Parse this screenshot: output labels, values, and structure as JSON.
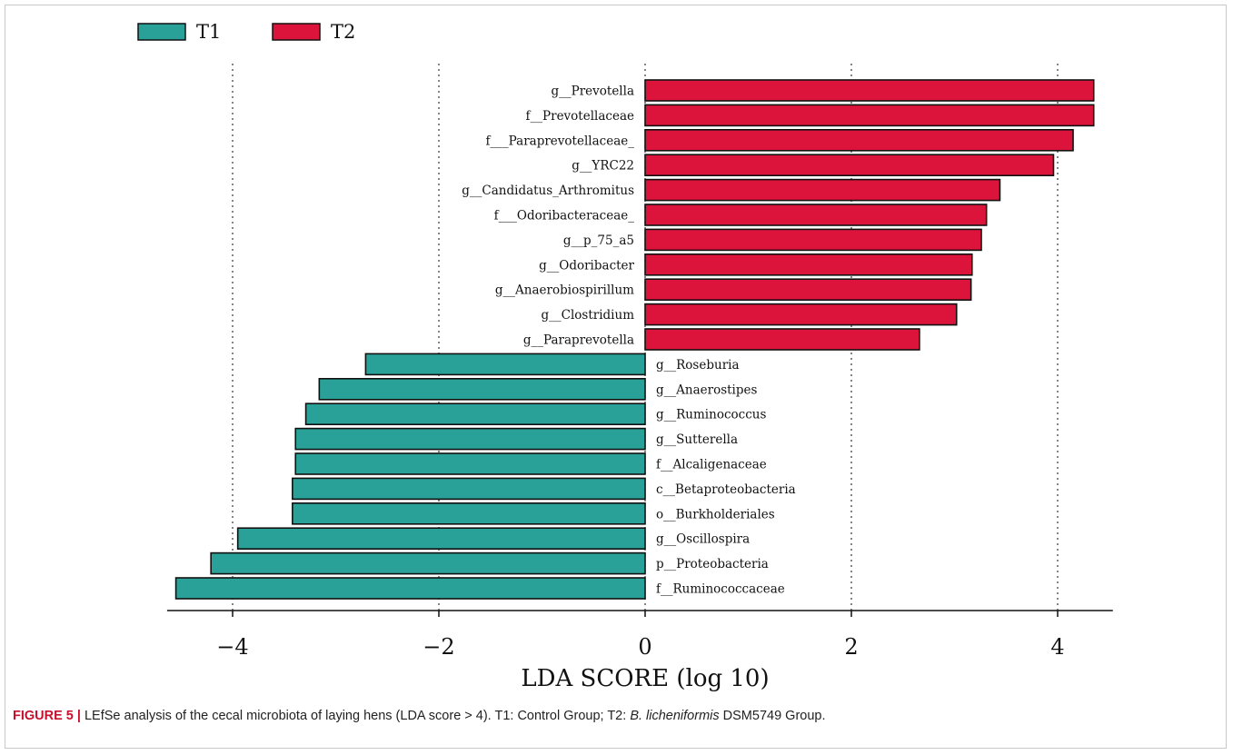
{
  "chart_data": {
    "type": "bar",
    "orientation": "horizontal",
    "xlabel": "LDA SCORE (log 10)",
    "xlim": [
      -4.6,
      4.5
    ],
    "xticks": [
      -4,
      -2,
      0,
      2,
      4
    ],
    "xtick_labels": [
      "−4",
      "−2",
      "0",
      "2",
      "4"
    ],
    "grid": "vertical dotted",
    "legend_position": "top-left",
    "series": [
      {
        "name": "T1",
        "color": "#2aa198"
      },
      {
        "name": "T2",
        "color": "#dc143c"
      }
    ],
    "bars": [
      {
        "label": "g__Prevotella",
        "value": 4.35,
        "group": "T2"
      },
      {
        "label": "f__Prevotellaceae",
        "value": 4.35,
        "group": "T2"
      },
      {
        "label": "f___Paraprevotellaceae_",
        "value": 4.15,
        "group": "T2"
      },
      {
        "label": "g__YRC22",
        "value": 3.96,
        "group": "T2"
      },
      {
        "label": "g__Candidatus_Arthromitus",
        "value": 3.44,
        "group": "T2"
      },
      {
        "label": "f___Odoribacteraceae_",
        "value": 3.31,
        "group": "T2"
      },
      {
        "label": "g__p_75_a5",
        "value": 3.26,
        "group": "T2"
      },
      {
        "label": "g__Odoribacter",
        "value": 3.17,
        "group": "T2"
      },
      {
        "label": "g__Anaerobiospirillum",
        "value": 3.16,
        "group": "T2"
      },
      {
        "label": "g__Clostridium",
        "value": 3.02,
        "group": "T2"
      },
      {
        "label": "g__Paraprevotella",
        "value": 2.66,
        "group": "T2"
      },
      {
        "label": "g__Roseburia",
        "value": -2.71,
        "group": "T1"
      },
      {
        "label": "g__Anaerostipes",
        "value": -3.16,
        "group": "T1"
      },
      {
        "label": "g__Ruminococcus",
        "value": -3.29,
        "group": "T1"
      },
      {
        "label": "g__Sutterella",
        "value": -3.39,
        "group": "T1"
      },
      {
        "label": "f__Alcaligenaceae",
        "value": -3.39,
        "group": "T1"
      },
      {
        "label": "c__Betaproteobacteria",
        "value": -3.42,
        "group": "T1"
      },
      {
        "label": "o__Burkholderiales",
        "value": -3.42,
        "group": "T1"
      },
      {
        "label": "g__Oscillospira",
        "value": -3.95,
        "group": "T1"
      },
      {
        "label": "p__Proteobacteria",
        "value": -4.21,
        "group": "T1"
      },
      {
        "label": "f__Ruminococcaceae",
        "value": -4.55,
        "group": "T1"
      }
    ]
  },
  "caption": {
    "figure_label": "FIGURE 5 |",
    "text_before_species": " LEfSe analysis of the cecal microbiota of laying hens (LDA score > 4). T1: Control Group; T2: ",
    "species": "B. licheniformis",
    "text_after_species": " DSM5749 Group."
  }
}
